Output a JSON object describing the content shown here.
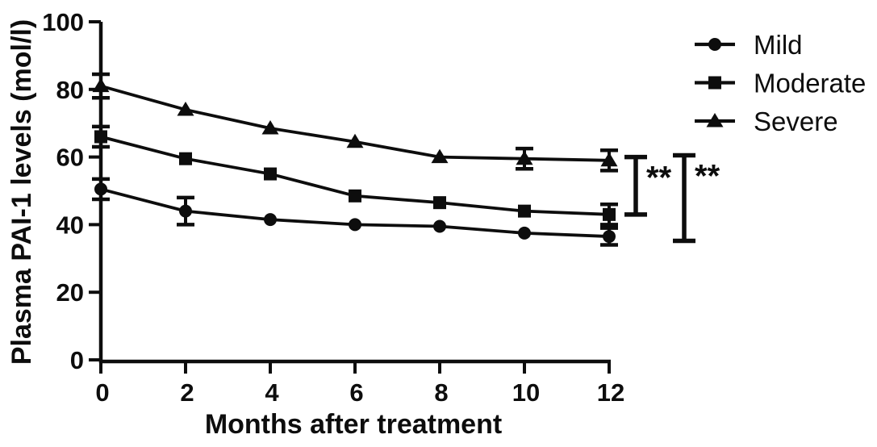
{
  "figure": {
    "background": "#ffffff",
    "ink_color": "#0d0d0d"
  },
  "chart_data": {
    "type": "line",
    "title": "",
    "xlabel": "Months after treatment",
    "ylabel": "Plasma PAI-1 levels (mol/l)",
    "x": [
      0,
      2,
      4,
      6,
      8,
      10,
      12
    ],
    "xticks": [
      "0",
      "2",
      "4",
      "6",
      "8",
      "10",
      "12"
    ],
    "yticks": [
      "0",
      "20",
      "40",
      "60",
      "80",
      "100"
    ],
    "ytick_values": [
      0,
      20,
      40,
      60,
      80,
      100
    ],
    "xlim": [
      0,
      12
    ],
    "ylim": [
      0,
      100
    ],
    "grid": false,
    "legend_position": "top-right",
    "series": [
      {
        "name": "Mild",
        "marker": "circle",
        "color": "#0d0d0d",
        "values": [
          50.5,
          44,
          41.5,
          40,
          39.5,
          37.5,
          36.5
        ],
        "error": [
          3,
          4,
          0,
          0,
          0,
          0,
          2.5
        ]
      },
      {
        "name": "Moderate",
        "marker": "square",
        "color": "#0d0d0d",
        "values": [
          66,
          59.5,
          55,
          48.5,
          46.5,
          44,
          43
        ],
        "error": [
          3,
          0,
          0,
          0,
          0,
          0,
          3
        ]
      },
      {
        "name": "Severe",
        "marker": "triangle",
        "color": "#0d0d0d",
        "values": [
          81,
          74,
          68.5,
          64.5,
          60,
          59.5,
          59
        ],
        "error": [
          3.5,
          0,
          0,
          0,
          0,
          3,
          3
        ]
      }
    ],
    "annotations": {
      "significance_brackets": [
        {
          "label": "**",
          "compares": [
            "Severe",
            "Moderate"
          ],
          "value_span": [
            60,
            43
          ]
        },
        {
          "label": "**",
          "compares": [
            "Severe",
            "Mild"
          ],
          "value_span": [
            60.5,
            35.2
          ]
        }
      ]
    }
  }
}
